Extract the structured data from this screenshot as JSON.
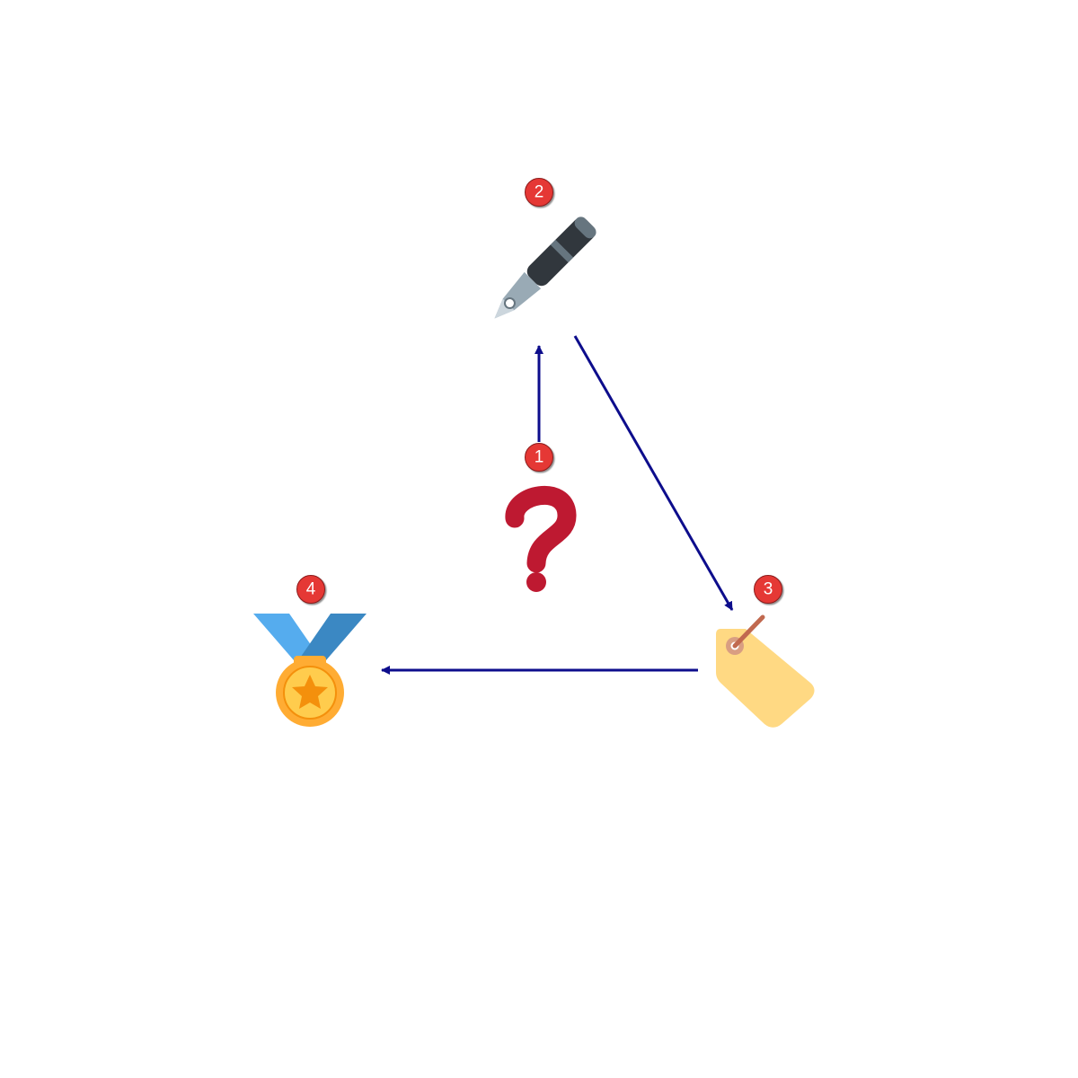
{
  "diagram": {
    "type": "flow",
    "colors": {
      "arrow": "#0d0d8c",
      "badge_fill": "#e53935",
      "badge_stroke": "#8b1a1a",
      "badge_text": "#ffffff"
    },
    "nodes": [
      {
        "id": "question",
        "badge": "1",
        "icon": "question-mark-icon",
        "color": "#be1931"
      },
      {
        "id": "pen",
        "badge": "2",
        "icon": "fountain-pen-icon",
        "color": "#31373d"
      },
      {
        "id": "tag",
        "badge": "3",
        "icon": "price-tag-icon",
        "color": "#ffd983"
      },
      {
        "id": "medal",
        "badge": "4",
        "icon": "sports-medal-icon",
        "color": "#ffac33"
      }
    ],
    "edges": [
      {
        "from": "question",
        "to": "pen"
      },
      {
        "from": "pen",
        "to": "tag"
      },
      {
        "from": "tag",
        "to": "medal"
      }
    ]
  }
}
